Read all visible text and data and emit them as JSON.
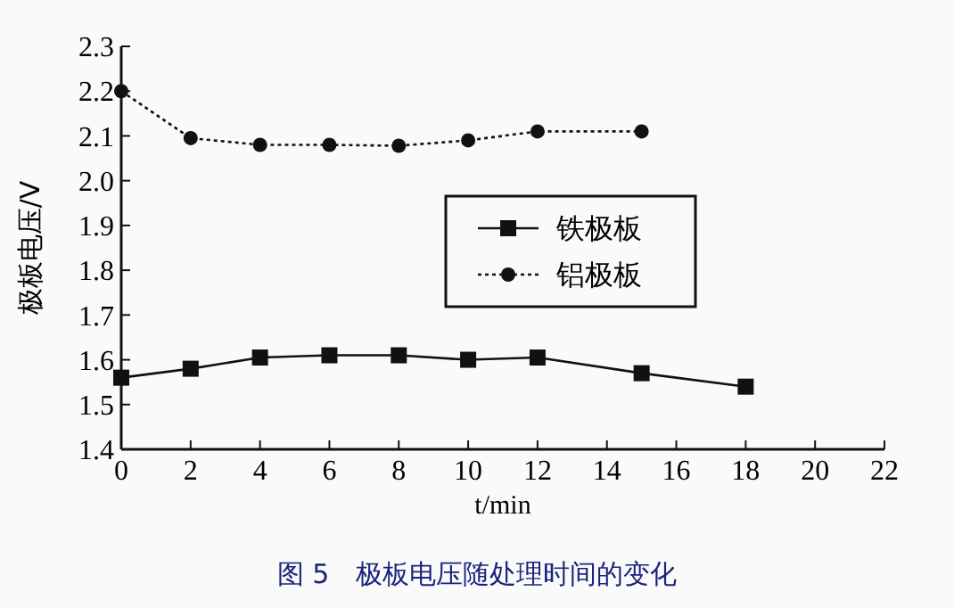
{
  "chart_data": {
    "type": "line",
    "title": "图 5　极板电压随处理时间的变化",
    "xlabel": "t/min",
    "ylabel": "极板电压/V",
    "xlim": [
      0,
      22
    ],
    "xticks": [
      0,
      2,
      4,
      6,
      8,
      10,
      12,
      14,
      16,
      18,
      20,
      22
    ],
    "ylim": [
      1.4,
      2.3
    ],
    "yticks": [
      {
        "value": 1.4,
        "label": "1.4"
      },
      {
        "value": 1.5,
        "label": "1.5"
      },
      {
        "value": 1.6,
        "label": "1.6"
      },
      {
        "value": 1.7,
        "label": "1.7"
      },
      {
        "value": 1.8,
        "label": "1.8"
      },
      {
        "value": 1.9,
        "label": "1.9"
      },
      {
        "value": 2.0,
        "label": "2.0"
      },
      {
        "value": 2.1,
        "label": "2.1"
      },
      {
        "value": 2.2,
        "label": "2.2"
      },
      {
        "value": 2.3,
        "label": "2.3"
      }
    ],
    "legend": "right",
    "grid": false,
    "series": [
      {
        "name": "铁极板",
        "color": "#111111",
        "marker": "square",
        "line_style": "solid",
        "x": [
          0,
          2,
          4,
          6,
          8,
          10,
          12,
          15,
          18
        ],
        "values": [
          1.56,
          1.58,
          1.605,
          1.61,
          1.61,
          1.6,
          1.605,
          1.57,
          1.54
        ]
      },
      {
        "name": "铝极板",
        "color": "#111111",
        "marker": "circle",
        "line_style": "dotted",
        "x": [
          0,
          2,
          4,
          6,
          8,
          10,
          12,
          15
        ],
        "values": [
          2.2,
          2.095,
          2.08,
          2.08,
          2.078,
          2.09,
          2.11,
          2.11
        ]
      }
    ]
  }
}
